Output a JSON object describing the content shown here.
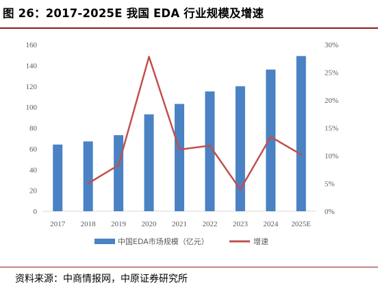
{
  "title": "图 26：2017-2025E  我国 EDA 行业规模及增速",
  "source": "资料来源：中商情报网，中原证券研究所",
  "chart_data": {
    "type": "bar",
    "categories": [
      "2017",
      "2018",
      "2019",
      "2020",
      "2021",
      "2022",
      "2023",
      "2024",
      "2025E"
    ],
    "series": [
      {
        "name": "中国EDA市场规模（亿元）",
        "type": "bar",
        "axis": "left",
        "color": "#4a82c4",
        "values": [
          64,
          67,
          73,
          93,
          103,
          115,
          120,
          136,
          149
        ]
      },
      {
        "name": "增速",
        "type": "line",
        "axis": "right",
        "color": "#c0504d",
        "values": [
          null,
          5.0,
          8.3,
          27.8,
          11.1,
          11.8,
          3.9,
          13.4,
          10.2
        ]
      }
    ],
    "y_left": {
      "ylim": [
        0,
        160
      ],
      "ticks": [
        "0",
        "20",
        "40",
        "60",
        "80",
        "100",
        "120",
        "140",
        "160"
      ]
    },
    "y_right": {
      "ylim": [
        0,
        30
      ],
      "ticks": [
        "0%",
        "5%",
        "10%",
        "15%",
        "20%",
        "25%",
        "30%"
      ]
    },
    "grid": false,
    "legend": "bottom"
  }
}
